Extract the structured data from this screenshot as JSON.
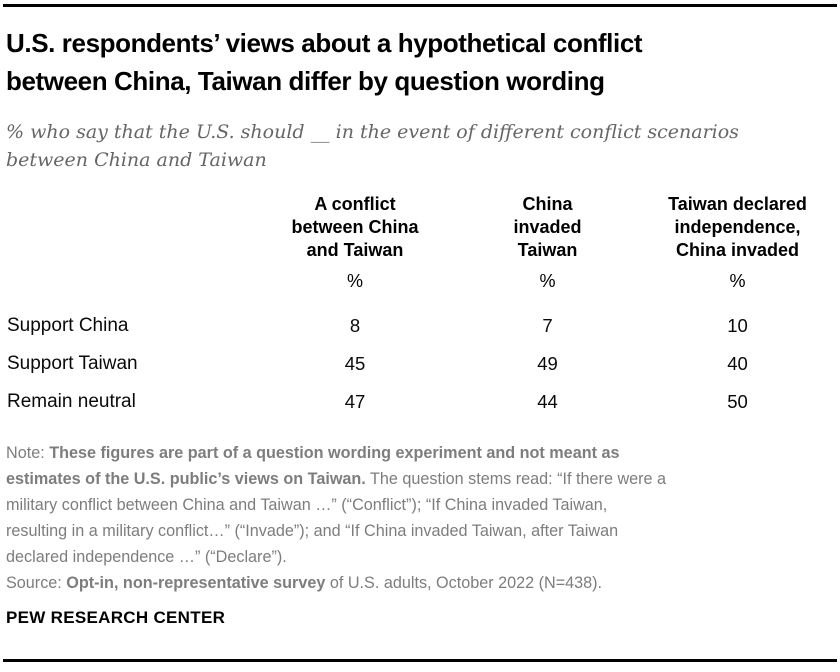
{
  "colors": {
    "text": "#000000",
    "subtitle_gray": "#666666",
    "note_gray": "#7d7d7d",
    "rule": "#000000"
  },
  "header": {
    "title_lines": "U.S. respondents’ views about a hypothetical conflict\nbetween China, Taiwan differ by question wording",
    "subtitle_lines": "% who say that the U.S. should __ in the event of different conflict scenarios\nbetween China and Taiwan"
  },
  "table": {
    "header_lines": [
      "A conflict\nbetween China\nand Taiwan",
      "China\ninvaded\nTaiwan",
      "Taiwan declared\nindependence,\nChina invaded"
    ],
    "unit": "%"
  },
  "chart_data": {
    "type": "table",
    "title": "U.S. respondents’ views about a hypothetical conflict between China, Taiwan differ by question wording",
    "subtitle": "% who say that the U.S. should __ in the event of different conflict scenarios between China and Taiwan",
    "columns": [
      "A conflict between China and Taiwan",
      "China invaded Taiwan",
      "Taiwan declared independence, China invaded"
    ],
    "unit": "%",
    "rows": [
      {
        "label": "Support China",
        "values": [
          8,
          7,
          10
        ]
      },
      {
        "label": "Support Taiwan",
        "values": [
          45,
          49,
          40
        ]
      },
      {
        "label": "Remain neutral",
        "values": [
          47,
          44,
          50
        ]
      }
    ]
  },
  "note": {
    "lines": [
      {
        "pre": "Note: ",
        "bold": "These figures are part of a question wording experiment and not meant as",
        "post": ""
      },
      {
        "pre": "",
        "bold": "estimates of the U.S. public’s views on Taiwan.",
        "post": " The question stems read: “If there were a"
      },
      {
        "pre": "military conflict between China and Taiwan …” (“Conflict”); “If China invaded Taiwan,",
        "bold": "",
        "post": ""
      },
      {
        "pre": "resulting in a military conflict…” (“Invade”); and “If China invaded Taiwan, after Taiwan",
        "bold": "",
        "post": ""
      },
      {
        "pre": "declared independence …” (“Declare”).",
        "bold": "",
        "post": ""
      }
    ]
  },
  "source": {
    "pre": "Source: ",
    "bold": "Opt-in, non-representative survey",
    "post": " of U.S. adults, October 2022 (N=438)."
  },
  "footer": {
    "brand": "PEW RESEARCH CENTER"
  }
}
